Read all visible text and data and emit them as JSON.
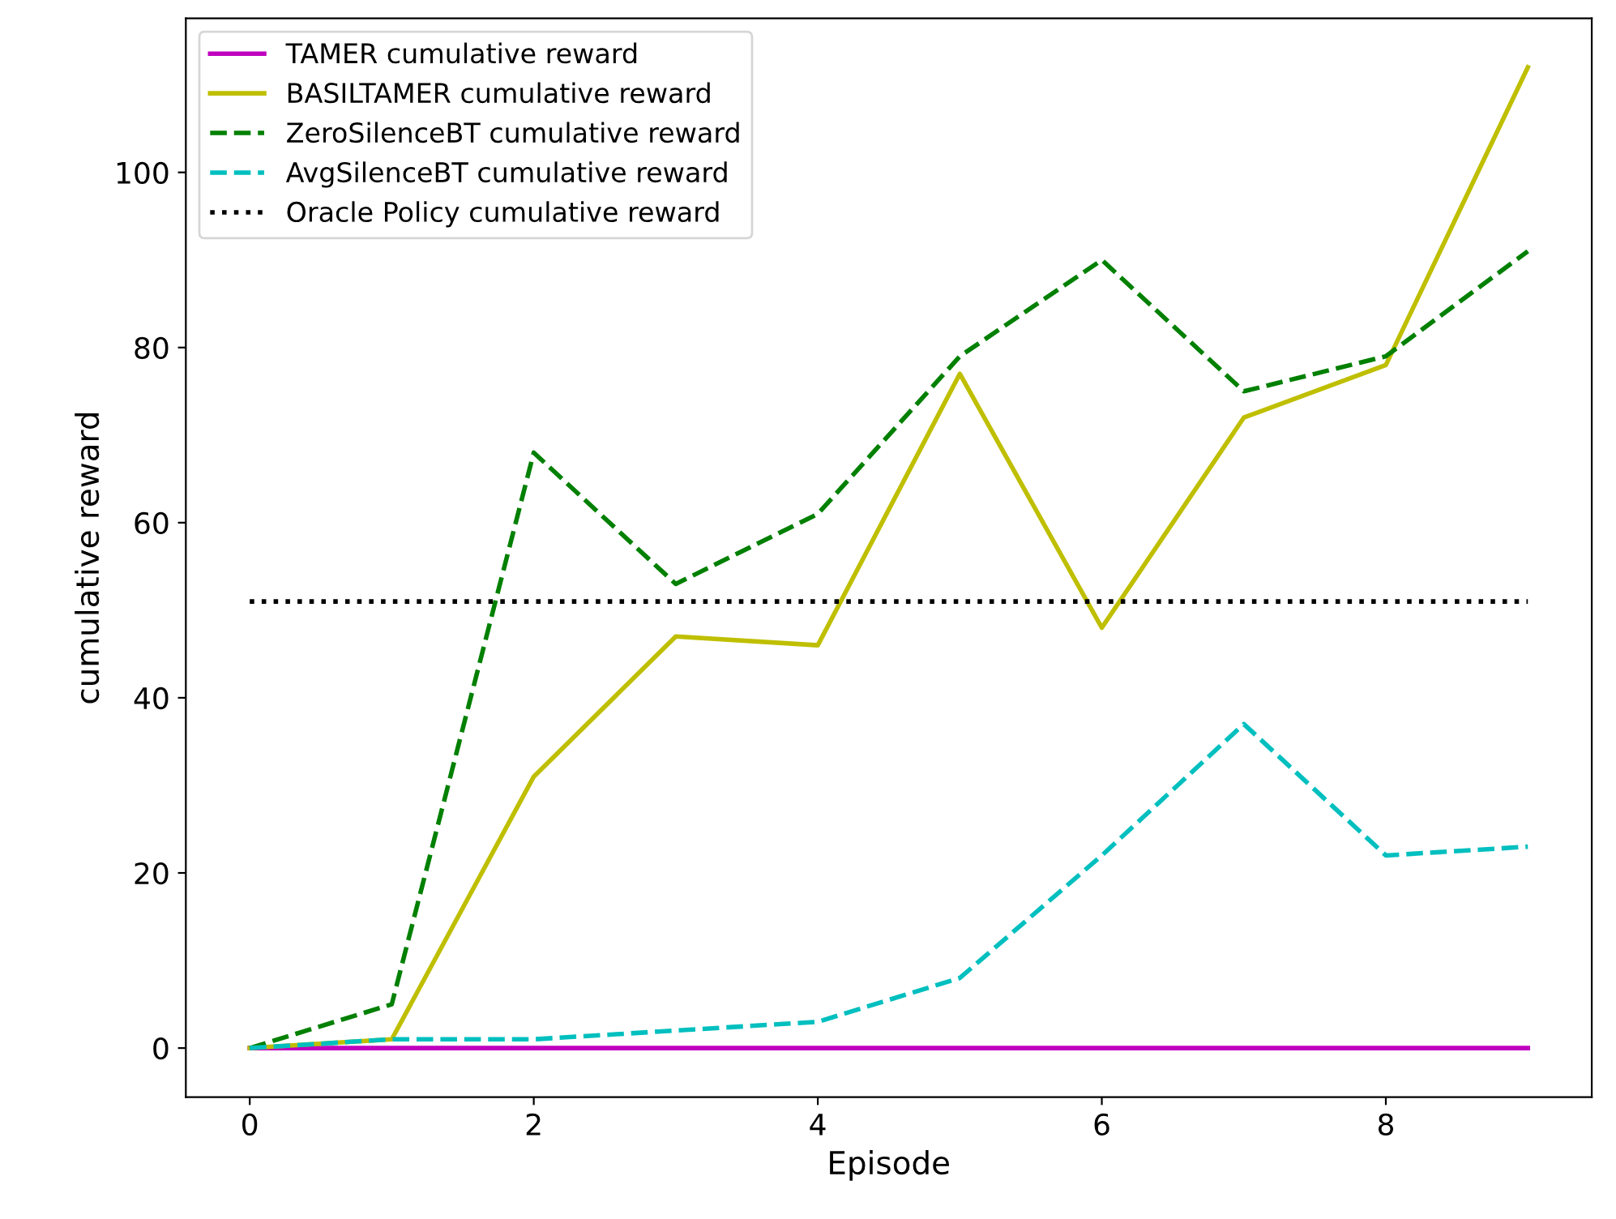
{
  "chart_data": {
    "type": "line",
    "xlabel": "Episode",
    "ylabel": "cumulative reward",
    "x": [
      0,
      1,
      2,
      3,
      4,
      5,
      6,
      7,
      8,
      9
    ],
    "series": [
      {
        "name": "TAMER cumulative reward",
        "color": "#bf00bf",
        "line_style": "solid",
        "values": [
          0,
          0,
          0,
          0,
          0,
          0,
          0,
          0,
          0,
          0
        ]
      },
      {
        "name": "BASILTAMER cumulative reward",
        "color": "#bfbf00",
        "line_style": "solid",
        "values": [
          0,
          1,
          31,
          47,
          46,
          77,
          48,
          72,
          78,
          112
        ]
      },
      {
        "name": "ZeroSilenceBT cumulative reward",
        "color": "#008000",
        "line_style": "dashed",
        "values": [
          0,
          5,
          68,
          53,
          61,
          79,
          90,
          75,
          79,
          91
        ]
      },
      {
        "name": "AvgSilenceBT cumulative reward",
        "color": "#00bfbf",
        "line_style": "dashed",
        "values": [
          0,
          1,
          1,
          2,
          3,
          8,
          22,
          37,
          22,
          23
        ]
      },
      {
        "name": "Oracle Policy cumulative reward",
        "color": "#000000",
        "line_style": "dotted",
        "values": [
          51,
          51,
          51,
          51,
          51,
          51,
          51,
          51,
          51,
          51
        ]
      }
    ],
    "xlim": [
      -0.45,
      9.45
    ],
    "ylim": [
      -5.6,
      117.6
    ],
    "xticks": [
      0,
      2,
      4,
      6,
      8
    ],
    "yticks": [
      0,
      20,
      40,
      60,
      80,
      100
    ],
    "grid": false,
    "legend": "upper left"
  }
}
